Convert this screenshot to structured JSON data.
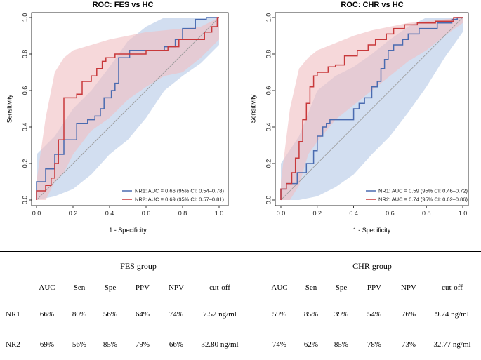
{
  "chart_data": [
    {
      "type": "line",
      "title": "ROC: FES vs HC",
      "xlabel": "1 - Specificity",
      "ylabel": "Sensitivity",
      "xlim": [
        0,
        1
      ],
      "ylim": [
        0,
        1
      ],
      "xticks": [
        "0.0",
        "0.2",
        "0.4",
        "0.6",
        "0.8",
        "1.0"
      ],
      "yticks": [
        "0.0",
        "0.2",
        "0.4",
        "0.6",
        "0.8",
        "1.0"
      ],
      "legend_position": "bottom-right",
      "series": [
        {
          "name": "NR1",
          "label": "NR1: AUC = 0.66 (95% CI: 0.54–0.78)",
          "color": "#4a6bb0",
          "band_color": "#b7c9e6",
          "x": [
            0,
            0,
            0.05,
            0.05,
            0.1,
            0.1,
            0.15,
            0.15,
            0.22,
            0.22,
            0.28,
            0.28,
            0.32,
            0.32,
            0.35,
            0.35,
            0.37,
            0.37,
            0.41,
            0.41,
            0.43,
            0.43,
            0.45,
            0.45,
            0.51,
            0.51,
            0.7,
            0.7,
            0.76,
            0.76,
            0.8,
            0.8,
            0.87,
            0.87,
            0.93,
            0.93,
            1
          ],
          "y": [
            0,
            0.1,
            0.1,
            0.17,
            0.17,
            0.25,
            0.25,
            0.33,
            0.33,
            0.42,
            0.42,
            0.44,
            0.44,
            0.46,
            0.46,
            0.5,
            0.5,
            0.56,
            0.56,
            0.6,
            0.6,
            0.64,
            0.64,
            0.78,
            0.78,
            0.82,
            0.82,
            0.84,
            0.84,
            0.88,
            0.88,
            0.94,
            0.94,
            0.99,
            0.99,
            1,
            1
          ],
          "band_x": [
            0,
            0.1,
            0.2,
            0.3,
            0.4,
            0.5,
            0.6,
            0.7,
            0.8,
            0.9,
            1
          ],
          "band_upper": [
            0.25,
            0.35,
            0.5,
            0.6,
            0.73,
            0.87,
            0.95,
            1,
            1,
            1,
            1
          ],
          "band_lower": [
            0,
            0.02,
            0.06,
            0.14,
            0.25,
            0.33,
            0.45,
            0.6,
            0.68,
            0.75,
            0.85
          ]
        },
        {
          "name": "NR2",
          "label": "NR2: AUC = 0.69 (95% CI: 0.57–0.81)",
          "color": "#c8383a",
          "band_color": "#f1c0c3",
          "x": [
            0,
            0,
            0.05,
            0.05,
            0.08,
            0.08,
            0.1,
            0.1,
            0.12,
            0.12,
            0.15,
            0.15,
            0.22,
            0.22,
            0.25,
            0.25,
            0.3,
            0.3,
            0.33,
            0.33,
            0.36,
            0.36,
            0.38,
            0.38,
            0.43,
            0.43,
            0.6,
            0.6,
            0.72,
            0.72,
            0.78,
            0.78,
            0.92,
            0.92,
            0.96,
            0.96,
            0.99,
            0.99,
            1
          ],
          "y": [
            0,
            0.05,
            0.05,
            0.08,
            0.08,
            0.12,
            0.12,
            0.2,
            0.2,
            0.33,
            0.33,
            0.56,
            0.56,
            0.58,
            0.58,
            0.65,
            0.65,
            0.68,
            0.68,
            0.72,
            0.72,
            0.76,
            0.76,
            0.78,
            0.78,
            0.8,
            0.8,
            0.82,
            0.82,
            0.84,
            0.84,
            0.88,
            0.88,
            0.92,
            0.92,
            0.95,
            0.95,
            1,
            1
          ],
          "band_x": [
            0,
            0.05,
            0.1,
            0.15,
            0.2,
            0.3,
            0.4,
            0.5,
            0.6,
            0.7,
            0.8,
            0.9,
            1
          ],
          "band_upper": [
            0.1,
            0.45,
            0.7,
            0.78,
            0.82,
            0.85,
            0.88,
            0.9,
            0.92,
            0.93,
            0.94,
            0.95,
            1
          ],
          "band_lower": [
            0,
            0,
            0.1,
            0.15,
            0.25,
            0.38,
            0.45,
            0.55,
            0.62,
            0.68,
            0.7,
            0.78,
            0.88
          ]
        }
      ]
    },
    {
      "type": "line",
      "title": "ROC: CHR vs HC",
      "xlabel": "1 - Specificity",
      "ylabel": "Sensitivity",
      "xlim": [
        0,
        1
      ],
      "ylim": [
        0,
        1
      ],
      "xticks": [
        "0.0",
        "0.2",
        "0.4",
        "0.6",
        "0.8",
        "1.0"
      ],
      "yticks": [
        "0.0",
        "0.2",
        "0.4",
        "0.6",
        "0.8",
        "1.0"
      ],
      "legend_position": "bottom-right",
      "series": [
        {
          "name": "NR1",
          "label": "NR1: AUC = 0.59 (95% CI: 0.46–0.72)",
          "color": "#4a6bb0",
          "band_color": "#b7c9e6",
          "x": [
            0,
            0,
            0.03,
            0.03,
            0.09,
            0.09,
            0.14,
            0.14,
            0.18,
            0.18,
            0.2,
            0.2,
            0.23,
            0.23,
            0.25,
            0.25,
            0.27,
            0.27,
            0.4,
            0.4,
            0.43,
            0.43,
            0.46,
            0.46,
            0.5,
            0.5,
            0.53,
            0.53,
            0.55,
            0.55,
            0.57,
            0.57,
            0.59,
            0.59,
            0.62,
            0.62,
            0.67,
            0.67,
            0.7,
            0.7,
            0.76,
            0.76,
            0.86,
            0.86,
            0.94,
            0.94,
            0.97,
            0.97,
            1
          ],
          "y": [
            0,
            0.06,
            0.06,
            0.09,
            0.09,
            0.15,
            0.15,
            0.2,
            0.2,
            0.27,
            0.27,
            0.35,
            0.35,
            0.4,
            0.4,
            0.42,
            0.42,
            0.44,
            0.44,
            0.5,
            0.5,
            0.53,
            0.53,
            0.56,
            0.56,
            0.62,
            0.62,
            0.65,
            0.65,
            0.72,
            0.72,
            0.77,
            0.77,
            0.82,
            0.82,
            0.85,
            0.85,
            0.88,
            0.88,
            0.91,
            0.91,
            0.94,
            0.94,
            0.97,
            0.97,
            0.99,
            0.99,
            1,
            1
          ],
          "band_x": [
            0,
            0.1,
            0.2,
            0.3,
            0.4,
            0.5,
            0.6,
            0.7,
            0.8,
            0.9,
            1
          ],
          "band_upper": [
            0.2,
            0.35,
            0.6,
            0.68,
            0.73,
            0.8,
            0.88,
            0.95,
            1,
            1,
            1
          ],
          "band_lower": [
            0,
            0,
            0.02,
            0.07,
            0.14,
            0.25,
            0.35,
            0.48,
            0.62,
            0.78,
            0.92
          ]
        },
        {
          "name": "NR2",
          "label": "NR2: AUC = 0.74 (95% CI: 0.62–0.86)",
          "color": "#c8383a",
          "band_color": "#f1c0c3",
          "x": [
            0,
            0,
            0.03,
            0.03,
            0.06,
            0.06,
            0.08,
            0.08,
            0.1,
            0.1,
            0.12,
            0.12,
            0.14,
            0.14,
            0.16,
            0.16,
            0.18,
            0.18,
            0.2,
            0.2,
            0.26,
            0.26,
            0.3,
            0.3,
            0.35,
            0.35,
            0.42,
            0.42,
            0.48,
            0.48,
            0.52,
            0.52,
            0.58,
            0.58,
            0.62,
            0.62,
            0.68,
            0.68,
            0.75,
            0.75,
            0.85,
            0.85,
            0.95,
            0.95,
            1
          ],
          "y": [
            0,
            0.06,
            0.06,
            0.09,
            0.09,
            0.15,
            0.15,
            0.23,
            0.23,
            0.32,
            0.32,
            0.44,
            0.44,
            0.53,
            0.53,
            0.62,
            0.62,
            0.68,
            0.68,
            0.7,
            0.7,
            0.73,
            0.73,
            0.74,
            0.74,
            0.79,
            0.79,
            0.82,
            0.82,
            0.85,
            0.85,
            0.88,
            0.88,
            0.91,
            0.91,
            0.94,
            0.94,
            0.96,
            0.96,
            0.97,
            0.97,
            0.98,
            0.98,
            1,
            1
          ],
          "band_x": [
            0,
            0.05,
            0.1,
            0.15,
            0.2,
            0.3,
            0.4,
            0.5,
            0.6,
            0.7,
            0.8,
            0.9,
            1
          ],
          "band_upper": [
            0.1,
            0.5,
            0.72,
            0.78,
            0.82,
            0.86,
            0.9,
            0.93,
            0.95,
            0.97,
            0.98,
            0.99,
            1
          ],
          "band_lower": [
            0,
            0,
            0.08,
            0.25,
            0.32,
            0.44,
            0.52,
            0.6,
            0.68,
            0.76,
            0.82,
            0.9,
            0.97
          ]
        }
      ]
    }
  ],
  "table": {
    "groups": [
      "FES group",
      "CHR group"
    ],
    "columns": [
      "AUC",
      "Sen",
      "Spe",
      "PPV",
      "NPV",
      "cut-off"
    ],
    "rows": [
      {
        "label": "NR1",
        "fes": [
          "66%",
          "80%",
          "56%",
          "64%",
          "74%",
          "7.52 ng/ml"
        ],
        "chr": [
          "59%",
          "85%",
          "39%",
          "54%",
          "76%",
          "9.74 ng/ml"
        ]
      },
      {
        "label": "NR2",
        "fes": [
          "69%",
          "56%",
          "85%",
          "79%",
          "66%",
          "32.80 ng/ml"
        ],
        "chr": [
          "74%",
          "62%",
          "85%",
          "78%",
          "73%",
          "32.77 ng/ml"
        ]
      }
    ]
  }
}
